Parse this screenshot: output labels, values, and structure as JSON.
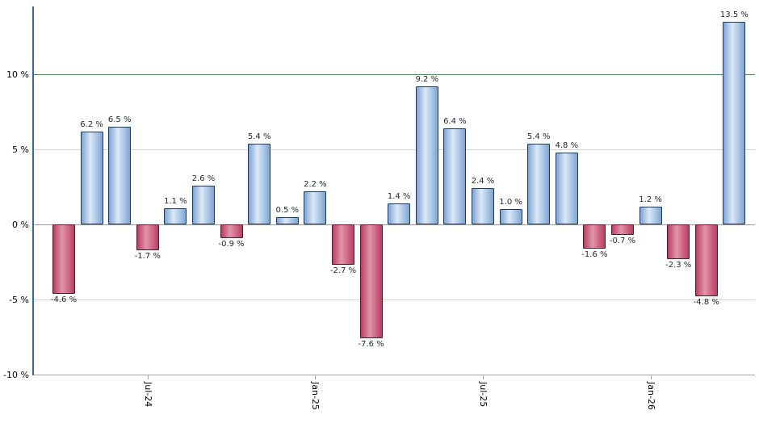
{
  "chart_data": {
    "type": "bar",
    "title": "",
    "xlabel": "",
    "ylabel": "",
    "ylim": [
      -10,
      14.5
    ],
    "grid": true,
    "legend": "none",
    "values": [
      -4.6,
      6.2,
      6.5,
      -1.7,
      1.1,
      2.6,
      -0.9,
      5.4,
      0.5,
      2.2,
      -2.7,
      -7.6,
      1.4,
      9.2,
      6.4,
      2.4,
      1.0,
      5.4,
      4.8,
      -1.6,
      -0.7,
      1.2,
      -2.3,
      -4.8,
      13.5
    ],
    "bar_value_labels": [
      "-4.6 %",
      "6.2 %",
      "6.5 %",
      "-1.7 %",
      "1.1 %",
      "2.6 %",
      "-0.9 %",
      "5.4 %",
      "0.5 %",
      "2.2 %",
      "-2.7 %",
      "-7.6 %",
      "1.4 %",
      "9.2 %",
      "6.4 %",
      "2.4 %",
      "1.0 %",
      "5.4 %",
      "4.8 %",
      "-1.6 %",
      "-0.7 %",
      "1.2 %",
      "-2.3 %",
      "-4.8 %",
      "13.5 %"
    ],
    "y_ticks": [
      {
        "value": 10,
        "label": "10 %",
        "style": "reference-green"
      },
      {
        "value": 5,
        "label": "5 %",
        "style": "grid"
      },
      {
        "value": 0,
        "label": "0 %",
        "style": "zero"
      },
      {
        "value": -5,
        "label": "-5 %",
        "style": "grid"
      },
      {
        "value": -10,
        "label": "-10 %",
        "style": "axis"
      }
    ],
    "x_ticks": [
      {
        "bar_index": 3,
        "label": "Jul-24"
      },
      {
        "bar_index": 9,
        "label": "Jan-25"
      },
      {
        "bar_index": 15,
        "label": "Jul-25"
      },
      {
        "bar_index": 21,
        "label": "Jan-26"
      }
    ],
    "colors": {
      "positive_bar_edge": "#7fa4d2",
      "positive_bar_center": "#dcE9f8",
      "positive_bar_border": "#1c3a5e",
      "negative_bar_edge": "#b93e62",
      "negative_bar_center": "#e294ab",
      "negative_bar_border": "#5f1430",
      "reference_line_green": "#2f9e44",
      "gridline": "#d4d4d4",
      "zero_line": "#9a9a9a",
      "bottom_axis": "#a6a6a6",
      "y_axis_blue": "#3a67b1",
      "value_label_text": "#1c2430",
      "axis_label_text": "#000000"
    }
  }
}
